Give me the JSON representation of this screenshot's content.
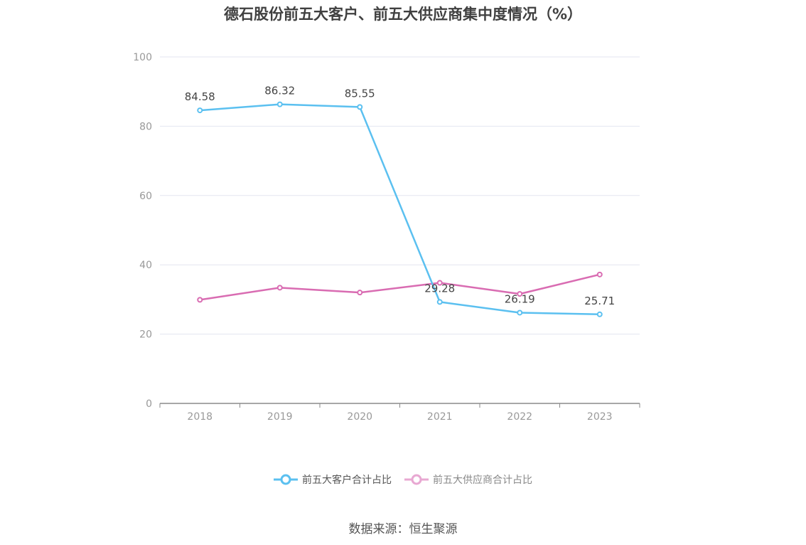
{
  "title": "德石股份前五大客户、前五大供应商集中度情况（%）",
  "source": "数据来源：恒生聚源",
  "chart_data": {
    "type": "line",
    "title": "德石股份前五大客户、前五大供应商集中度情况（%）",
    "categories": [
      "2018",
      "2019",
      "2020",
      "2021",
      "2022",
      "2023"
    ],
    "ylim": [
      0,
      100
    ],
    "yticks": [
      0,
      20,
      40,
      60,
      80,
      100
    ],
    "grid": true,
    "legend_position": "bottom",
    "series": [
      {
        "name": "前五大客户合计占比",
        "values": [
          84.58,
          86.32,
          85.55,
          29.28,
          26.19,
          25.71
        ],
        "labels": [
          "84.58",
          "86.32",
          "85.55",
          "29.28",
          "26.19",
          "25.71"
        ],
        "color": "#5bc0f0"
      },
      {
        "name": "前五大供应商合计占比",
        "values": [
          29.9,
          33.4,
          32.0,
          34.8,
          31.6,
          37.2
        ],
        "color": "#d96cb2"
      }
    ]
  }
}
